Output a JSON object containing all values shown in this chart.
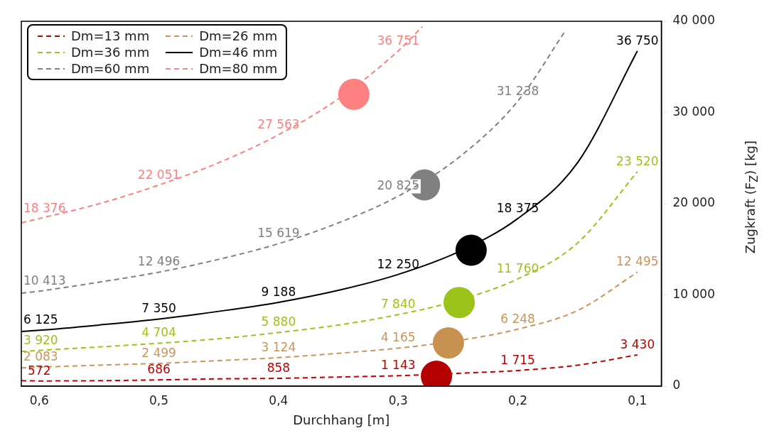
{
  "chart_data": {
    "type": "line",
    "xlabel": "Durchhang [m]",
    "ylabel": "Zugkraft (F$_{Z}$) [kg]",
    "xlim": [
      0.615,
      0.08
    ],
    "ylim": [
      0,
      40000
    ],
    "xticks": [
      {
        "value": 0.6,
        "label": "0,6"
      },
      {
        "value": 0.5,
        "label": "0,5"
      },
      {
        "value": 0.4,
        "label": "0,4"
      },
      {
        "value": 0.3,
        "label": "0,3"
      },
      {
        "value": 0.2,
        "label": "0,2"
      },
      {
        "value": 0.1,
        "label": "0,1"
      }
    ],
    "yticks": [
      0,
      {
        "value": 10000,
        "label": "10 000"
      },
      {
        "value": 20000,
        "label": "20 000"
      },
      {
        "value": 30000,
        "label": "30 000"
      },
      {
        "value": 40000,
        "label": "40 000"
      }
    ],
    "legend": "top left",
    "series": [
      {
        "name": "Dm=13 mm",
        "color": "#c00000",
        "line_style": "dashed",
        "marker": "none",
        "x": [
          0.615,
          0.6,
          0.55,
          0.5,
          0.45,
          0.4,
          0.35,
          0.3,
          0.25,
          0.2,
          0.15,
          0.1
        ],
        "values": [
          600,
          572,
          600,
          686,
          800,
          858,
          1000,
          1143,
          1400,
          1715,
          2300,
          3430
        ],
        "value_labels": [
          null,
          "572",
          null,
          "686",
          null,
          "858",
          null,
          "1 143",
          null,
          "1 715",
          null,
          "3 430"
        ]
      },
      {
        "name": "Dm=26 mm",
        "color": "#c8965a",
        "line_style": "dashed",
        "marker": "none",
        "x": [
          0.615,
          0.6,
          0.55,
          0.5,
          0.45,
          0.4,
          0.35,
          0.3,
          0.25,
          0.2,
          0.15,
          0.1
        ],
        "values": [
          2000,
          2083,
          2300,
          2499,
          2800,
          3124,
          3600,
          4165,
          5000,
          6248,
          8300,
          12495
        ],
        "value_labels": [
          null,
          "2 083",
          null,
          "2 499",
          null,
          "3 124",
          null,
          "4 165",
          null,
          "6 248",
          null,
          "12 495"
        ]
      },
      {
        "name": "Dm=36 mm",
        "color": "#9dc31a",
        "line_style": "dashed",
        "marker": "none",
        "x": [
          0.615,
          0.6,
          0.55,
          0.5,
          0.45,
          0.4,
          0.35,
          0.3,
          0.25,
          0.2,
          0.15,
          0.1
        ],
        "values": [
          3800,
          3920,
          4300,
          4704,
          5200,
          5880,
          6700,
          7840,
          9400,
          11760,
          15700,
          23520
        ],
        "value_labels": [
          null,
          "3 920",
          null,
          "4 704",
          null,
          "5 880",
          null,
          "7 840",
          null,
          "11 760",
          null,
          "23 520"
        ]
      },
      {
        "name": "Dm=46 mm",
        "color": "#000000",
        "line_style": "solid",
        "marker": "none",
        "x": [
          0.615,
          0.6,
          0.55,
          0.5,
          0.45,
          0.4,
          0.35,
          0.3,
          0.25,
          0.2,
          0.15,
          0.1
        ],
        "values": [
          6000,
          6125,
          6700,
          7350,
          8200,
          9188,
          10500,
          12250,
          14700,
          18375,
          24500,
          36750
        ],
        "value_labels": [
          null,
          "6 125",
          null,
          "7 350",
          null,
          "9 188",
          null,
          "12 250",
          null,
          "18 375",
          null,
          "36 750"
        ]
      },
      {
        "name": "Dm=60 mm",
        "color": "#808080",
        "line_style": "dashed",
        "marker": "none",
        "x": [
          0.615,
          0.6,
          0.55,
          0.5,
          0.45,
          0.4,
          0.35,
          0.3,
          0.25,
          0.2,
          0.16
        ],
        "values": [
          10200,
          10413,
          11400,
          12496,
          13900,
          15619,
          17900,
          20825,
          25000,
          31238,
          39000
        ],
        "value_labels": [
          null,
          "10 413",
          null,
          "12 496",
          null,
          "15 619",
          null,
          "20 825",
          null,
          "31 238",
          null
        ]
      },
      {
        "name": "Dm=80 mm",
        "color": "#ff8080",
        "line_style": "dashed",
        "marker": "none",
        "x": [
          0.615,
          0.6,
          0.55,
          0.5,
          0.45,
          0.4,
          0.35,
          0.3,
          0.28
        ],
        "values": [
          17900,
          18376,
          20000,
          22051,
          24500,
          27563,
          31500,
          36751,
          39400
        ],
        "value_labels": [
          null,
          "18 376",
          null,
          "22 051",
          null,
          "27 563",
          null,
          "36 751",
          null
        ]
      },
      {
        "type": "scatter",
        "marker": "circle",
        "x": [
          0.268,
          0.258,
          0.249,
          0.239,
          0.278,
          0.337
        ],
        "values": [
          1090,
          4740,
          9170,
          14900,
          22060,
          32000
        ],
        "colors": [
          "#b30000",
          "#c8914f",
          "#9bc31a",
          "#000000",
          "#808080",
          "#ff8080"
        ]
      }
    ]
  }
}
